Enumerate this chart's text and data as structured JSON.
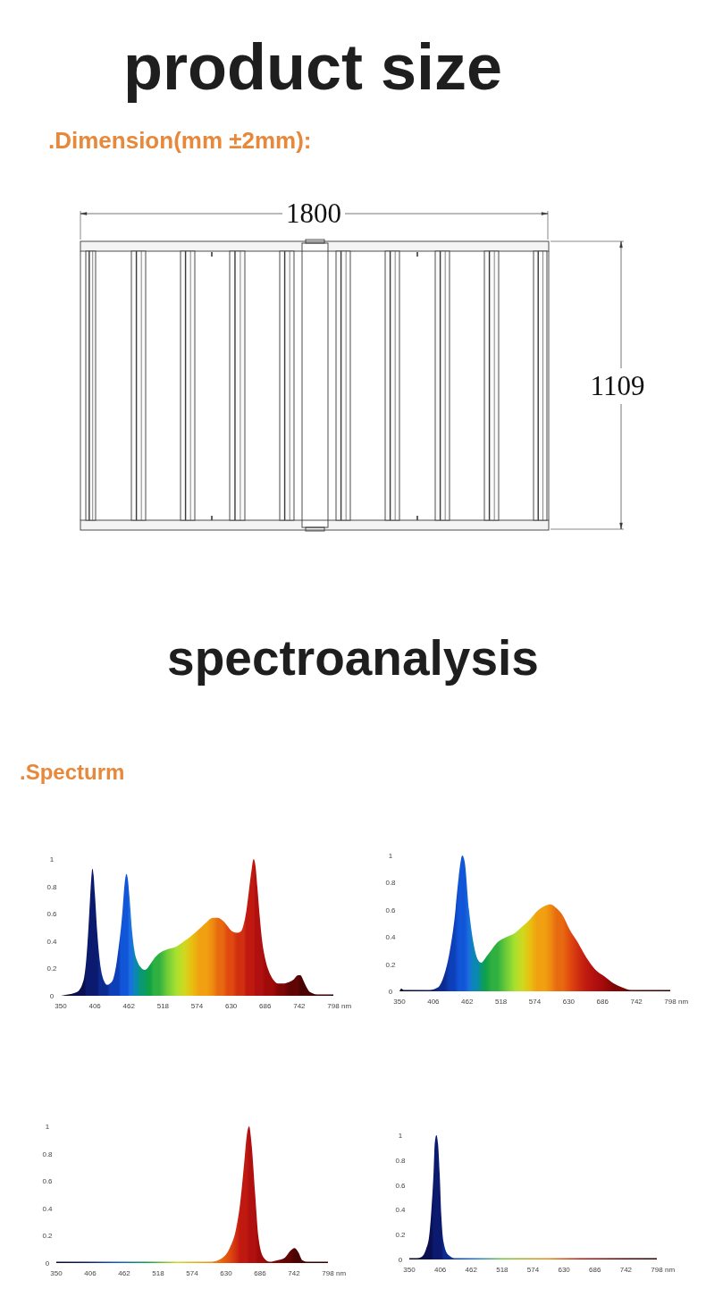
{
  "chart_data": [
    {
      "type": "other",
      "title": "product size",
      "subtitle": ".Dimension(mm ±2mm):",
      "annotations": [
        "1800",
        "1109"
      ]
    },
    {
      "type": "other",
      "title": "spectroanalysis",
      "subtitle": ".Specturm"
    },
    {
      "type": "area",
      "xlim": [
        350,
        798
      ],
      "ylim": [
        0,
        1
      ],
      "xticks": [
        350,
        406,
        462,
        518,
        574,
        630,
        686,
        742,
        798
      ],
      "yticks": [
        0,
        0.2,
        0.4,
        0.6,
        0.8,
        1
      ],
      "xlabel": "nm",
      "x": [
        350,
        362,
        372,
        380,
        385,
        389,
        392,
        395,
        398,
        400,
        402,
        404,
        406,
        410,
        414,
        418,
        422,
        426,
        431,
        436,
        441,
        445,
        449,
        452,
        455,
        458,
        460,
        463,
        467,
        471,
        476,
        481,
        487,
        492,
        497,
        503,
        512,
        525,
        540,
        553,
        565,
        578,
        590,
        600,
        608,
        616,
        624,
        632,
        640,
        646,
        651,
        655,
        659,
        663,
        667,
        670,
        673,
        677,
        681,
        686,
        692,
        699,
        707,
        716,
        725,
        733,
        740,
        744,
        748,
        752,
        757,
        763,
        772,
        798
      ],
      "series": [
        {
          "values": [
            0,
            0.01,
            0.02,
            0.04,
            0.08,
            0.15,
            0.27,
            0.46,
            0.7,
            0.85,
            0.93,
            0.88,
            0.75,
            0.46,
            0.26,
            0.15,
            0.1,
            0.08,
            0.09,
            0.12,
            0.22,
            0.35,
            0.5,
            0.65,
            0.82,
            0.89,
            0.86,
            0.72,
            0.48,
            0.33,
            0.25,
            0.21,
            0.19,
            0.2,
            0.23,
            0.27,
            0.31,
            0.34,
            0.36,
            0.4,
            0.44,
            0.49,
            0.54,
            0.57,
            0.57,
            0.55,
            0.51,
            0.47,
            0.46,
            0.47,
            0.53,
            0.62,
            0.76,
            0.9,
            1,
            0.95,
            0.8,
            0.58,
            0.4,
            0.27,
            0.18,
            0.12,
            0.09,
            0.09,
            0.1,
            0.12,
            0.15,
            0.15,
            0.12,
            0.08,
            0.04,
            0.02,
            0.01,
            0.01
          ],
          "colors": [
            "#0a0a30",
            "#0a0a30",
            "#0a0f50",
            "#0a0f50",
            "#0a0f50",
            "#0a0f50",
            "#0b1a6e",
            "#0b1a6e",
            "#0b1a6e",
            "#0b1a6e",
            "#0b1a6e",
            "#0b1a6e",
            "#0b1a6e",
            "#0b1a6e",
            "#0c2a90",
            "#0c2a90",
            "#0c2a90",
            "#0c2a90",
            "#0d3fb8",
            "#0d3fb8",
            "#0d3fb8",
            "#0d3fb8",
            "#1155d8",
            "#1155d8",
            "#1155d8",
            "#1155d8",
            "#1155d8",
            "#1a70e0",
            "#1a70e0",
            "#0a88b0",
            "#0a88b0",
            "#0a9870",
            "#0a9870",
            "#10a048",
            "#10a048",
            "#30b040",
            "#30b040",
            "#70cc38",
            "#a8e030",
            "#d0d820",
            "#e8c010",
            "#f0a010",
            "#f0a010",
            "#ee8a10",
            "#e86a10",
            "#e86a10",
            "#e04a10",
            "#e04a10",
            "#d03010",
            "#d03010",
            "#d03010",
            "#c01a10",
            "#c01a10",
            "#c01a10",
            "#c01a10",
            "#b01010",
            "#b01010",
            "#b01010",
            "#b01010",
            "#a00a08",
            "#a00a08",
            "#a00a08",
            "#800606",
            "#800606",
            "#600404",
            "#600404",
            "#600404",
            "#4a0303",
            "#4a0303",
            "#4a0303",
            "#4a0303",
            "#3a0202",
            "#3a0202",
            "#300202"
          ]
        }
      ]
    },
    {
      "type": "area",
      "xlim": [
        350,
        798
      ],
      "ylim": [
        0,
        1
      ],
      "xticks": [
        350,
        406,
        462,
        518,
        574,
        630,
        686,
        742,
        798
      ],
      "yticks": [
        0,
        0.2,
        0.4,
        0.6,
        0.8,
        1
      ],
      "xlabel": "nm",
      "x": [
        350,
        353,
        357,
        400,
        414,
        424,
        433,
        441,
        448,
        454,
        458,
        465,
        473,
        480,
        485,
        493,
        503,
        512,
        527,
        541,
        554,
        566,
        578,
        591,
        600,
        610,
        620,
        632,
        645,
        659,
        674,
        689,
        704,
        718,
        733,
        748,
        798
      ],
      "series": [
        {
          "values": [
            0,
            0.02,
            0.01,
            0.01,
            0.03,
            0.12,
            0.29,
            0.53,
            0.84,
            1,
            0.95,
            0.6,
            0.34,
            0.23,
            0.21,
            0.25,
            0.31,
            0.36,
            0.4,
            0.43,
            0.48,
            0.53,
            0.59,
            0.63,
            0.64,
            0.61,
            0.56,
            0.45,
            0.36,
            0.25,
            0.16,
            0.11,
            0.06,
            0.03,
            0.01,
            0.01,
            0.01
          ],
          "colors": [
            "#0a0a30",
            "#0a0a30",
            "#0a0a30",
            "#0b1a6e",
            "#0c2a90",
            "#0c2a90",
            "#0d3fb8",
            "#0d3fb8",
            "#1155d8",
            "#1155d8",
            "#1155d8",
            "#1a70e0",
            "#0a88b0",
            "#0a88b0",
            "#0a9870",
            "#10a048",
            "#30b040",
            "#30b040",
            "#70cc38",
            "#a8e030",
            "#d0d820",
            "#e8c010",
            "#f0a010",
            "#f0a010",
            "#ee8a10",
            "#e86a10",
            "#e86a10",
            "#e04a10",
            "#d03010",
            "#c01a10",
            "#b01010",
            "#a00a08",
            "#800606",
            "#800606",
            "#600404",
            "#4a0303",
            "#300202"
          ]
        }
      ]
    },
    {
      "type": "area",
      "xlim": [
        350,
        798
      ],
      "ylim": [
        0,
        1
      ],
      "xticks": [
        350,
        406,
        462,
        518,
        574,
        630,
        686,
        742,
        798
      ],
      "yticks": [
        0,
        0.2,
        0.4,
        0.6,
        0.8,
        1
      ],
      "xlabel": "nm",
      "x": [
        350,
        400,
        450,
        500,
        550,
        606,
        621,
        636,
        646,
        653,
        660,
        664,
        668,
        672,
        678,
        683,
        692,
        702,
        714,
        727,
        736,
        743,
        749,
        756,
        764,
        798
      ],
      "series": [
        {
          "values": [
            0.01,
            0.01,
            0.01,
            0.01,
            0.01,
            0.01,
            0.03,
            0.11,
            0.24,
            0.43,
            0.74,
            0.93,
            1,
            0.87,
            0.5,
            0.2,
            0.04,
            0.01,
            0.02,
            0.04,
            0.09,
            0.11,
            0.08,
            0.02,
            0.01,
            0.01
          ],
          "colors": [
            "#0a0a30",
            "#0b1a6e",
            "#1155d8",
            "#10a048",
            "#d0d820",
            "#ee8a10",
            "#e86a10",
            "#e04a10",
            "#d03010",
            "#c01a10",
            "#c01a10",
            "#c01a10",
            "#b01010",
            "#b01010",
            "#b01010",
            "#a00a08",
            "#a00a08",
            "#800606",
            "#800606",
            "#600404",
            "#600404",
            "#4a0303",
            "#4a0303",
            "#4a0303",
            "#3a0202",
            "#300202"
          ]
        }
      ]
    },
    {
      "type": "area",
      "xlim": [
        350,
        798
      ],
      "ylim": [
        0,
        1
      ],
      "xticks": [
        350,
        406,
        462,
        518,
        574,
        630,
        686,
        742,
        798
      ],
      "yticks": [
        0,
        0.2,
        0.4,
        0.6,
        0.8,
        1
      ],
      "xlabel": "nm",
      "x": [
        350,
        364,
        372,
        380,
        386,
        390,
        394,
        396,
        399,
        402,
        405,
        408,
        412,
        420,
        434,
        466,
        520,
        600,
        660,
        740,
        798
      ],
      "series": [
        {
          "values": [
            0.01,
            0.01,
            0.02,
            0.08,
            0.19,
            0.4,
            0.71,
            0.93,
            1,
            0.93,
            0.69,
            0.35,
            0.14,
            0.04,
            0.01,
            0.01,
            0.01,
            0.01,
            0.01,
            0.01,
            0.01
          ],
          "colors": [
            "#0a0a30",
            "#0a0a30",
            "#0a0f50",
            "#0a0f50",
            "#0a0f50",
            "#0a0f50",
            "#0b1a6e",
            "#0b1a6e",
            "#0b1a6e",
            "#0b1a6e",
            "#0b1a6e",
            "#0b1a6e",
            "#0c2a90",
            "#0c2a90",
            "#0d3fb8",
            "#1a70e0",
            "#70cc38",
            "#ee8a10",
            "#c01a10",
            "#600404",
            "#300202"
          ]
        }
      ]
    }
  ]
}
